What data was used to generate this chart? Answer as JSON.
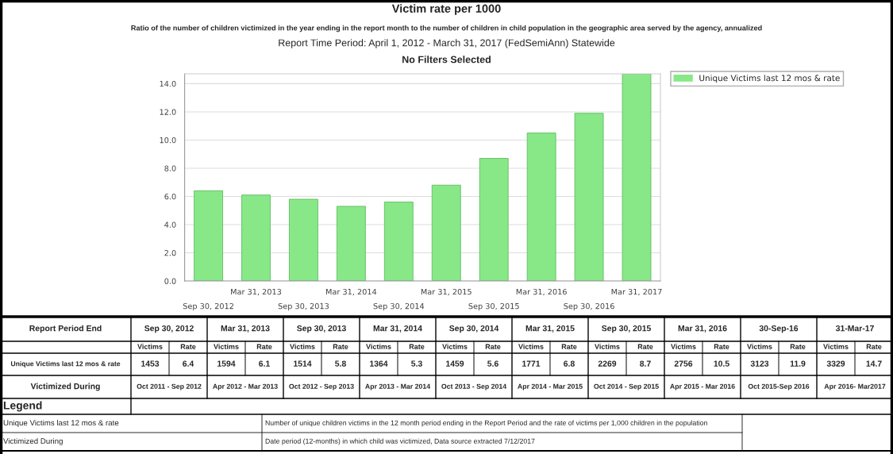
{
  "chart_data": [
    {
      "type": "bar",
      "title": "Victim rate per 1000",
      "subtitle": "Ratio of the number of children victimized in the year ending in the report month to the number of children in child population in the geographic area served by the agency, annualized",
      "annotations": [
        "Report Time Period: April 1, 2012 - March 31, 2017 (FedSemiAnn) Statewide",
        "No Filters Selected"
      ],
      "categories": [
        "Sep 30, 2012",
        "Mar 31, 2013",
        "Sep 30, 2013",
        "Mar 31, 2014",
        "Sep 30, 2014",
        "Mar 31, 2015",
        "Sep 30, 2015",
        "Mar 31, 2016",
        "Sep 30, 2016",
        "Mar 31, 2017"
      ],
      "series": [
        {
          "name": "Unique Victims last 12 mos & rate",
          "color": "#88e888",
          "values": [
            6.4,
            6.1,
            5.8,
            5.3,
            5.6,
            6.8,
            8.7,
            10.5,
            11.9,
            14.7
          ]
        }
      ],
      "ylim": [
        0,
        14.7
      ],
      "yticks": [
        {
          "value": 0,
          "label": "0.0"
        },
        {
          "value": 2,
          "label": "2.0"
        },
        {
          "value": 4,
          "label": "4.0"
        },
        {
          "value": 6,
          "label": "6.0"
        },
        {
          "value": 8,
          "label": "8.0"
        },
        {
          "value": 10,
          "label": "10.0"
        },
        {
          "value": 12,
          "label": "12.0"
        },
        {
          "value": 14,
          "label": "14.0"
        }
      ],
      "grid": "y",
      "legend": "top right"
    },
    {
      "type": "other",
      "annotations": [
        "Report Period End",
        "Sep 30, 2012",
        "Mar 31, 2013",
        "Sep 30, 2013",
        "Mar 31, 2014",
        "Sep 30, 2014",
        "Mar 31, 2015",
        "Sep 30, 2015",
        "Mar 31, 2016",
        "30-Sep-16",
        "31-Mar-17",
        "Victims",
        "Rate",
        "Unique Victims last 12 mos & rate",
        "1453",
        "1594",
        "1514",
        "1364",
        "1459",
        "1771",
        "2269",
        "2756",
        "3123",
        "3329",
        "6.4",
        "6.1",
        "5.8",
        "5.3",
        "5.6",
        "6.8",
        "8.7",
        "10.5",
        "11.9",
        "14.7",
        "Victimized During",
        "Oct 2011 - Sep 2012",
        "Apr 2012 - Mar 2013",
        "Oct 2012 - Sep 2013",
        "Apr 2013 - Mar 2014",
        "Oct 2013 - Sep 2014",
        "Apr 2014 - Mar 2015",
        "Oct 2014 - Sep 2015",
        "Apr 2015 - Mar 2016",
        "Oct 2015-Sep 2016",
        "Apr 2016- Mar2017",
        "Legend",
        "Unique Victims last 12 mos & rate",
        "Number of unique children victims in the 12 month period ending in the Report Period and the rate of victims per 1,000 children in the population",
        "Victimized During",
        "Date period (12-months) in which child was victimized, Data source extracted 7/12/2017"
      ]
    }
  ]
}
